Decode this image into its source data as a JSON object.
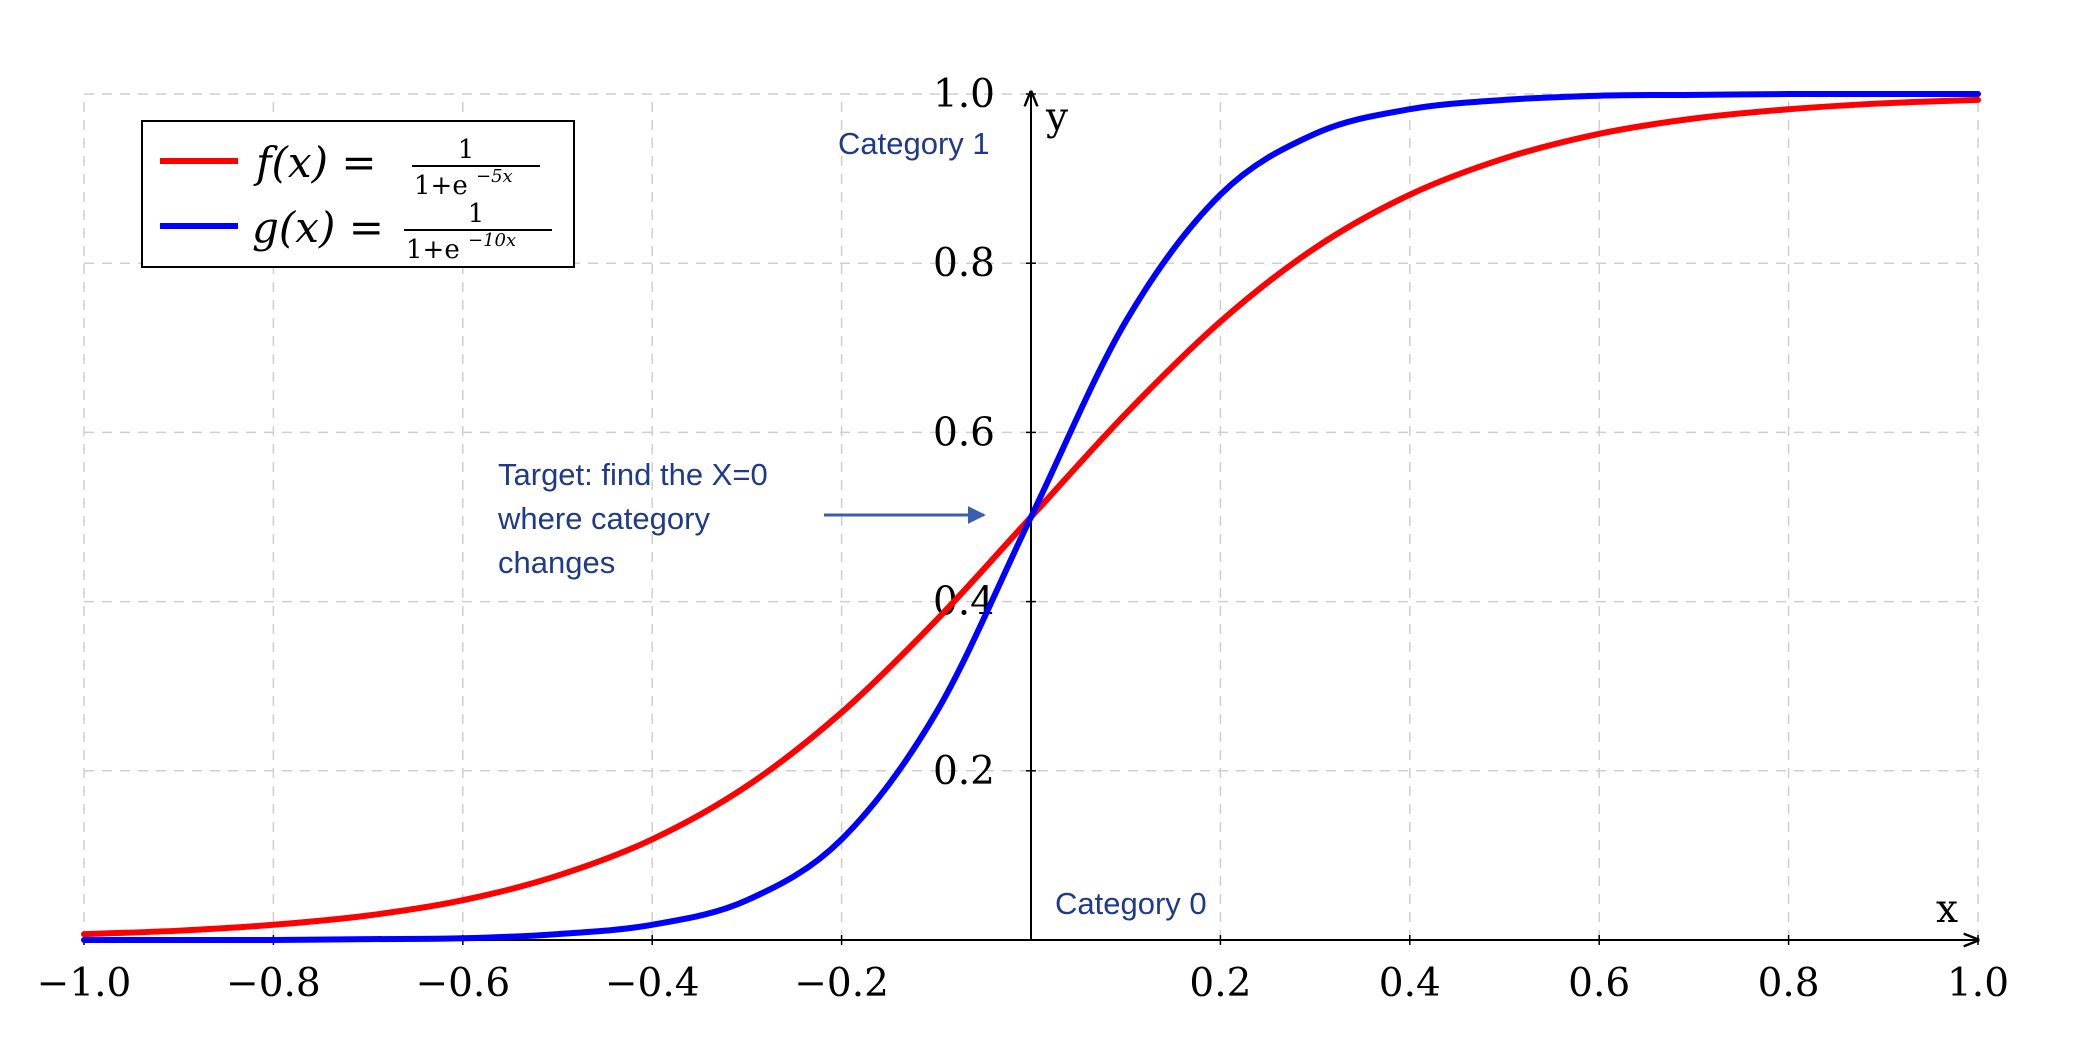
{
  "chart_data": {
    "type": "line",
    "xlabel": "x",
    "ylabel": "y",
    "xlim": [
      -1.0,
      1.0
    ],
    "ylim": [
      0.0,
      1.0
    ],
    "grid": true,
    "grid_style": "dashed",
    "legend_position": "top-left",
    "x_ticks": [
      -1.0,
      -0.8,
      -0.6,
      -0.4,
      -0.2,
      0.2,
      0.4,
      0.6,
      0.8,
      1.0
    ],
    "x_tick_labels": [
      "−1.0",
      "−0.8",
      "−0.6",
      "−0.4",
      "−0.2",
      "0.2",
      "0.4",
      "0.6",
      "0.8",
      "1.0"
    ],
    "y_ticks": [
      0.2,
      0.4,
      0.6,
      0.8,
      1.0
    ],
    "y_tick_labels": [
      "0.2",
      "0.4",
      "0.6",
      "0.8",
      "1.0"
    ],
    "series": [
      {
        "name": "f(x) = 1/(1+e^{-5x})",
        "color": "#ff0000",
        "x": [
          -1.0,
          -0.9,
          -0.8,
          -0.7,
          -0.6,
          -0.5,
          -0.4,
          -0.3,
          -0.2,
          -0.1,
          0.0,
          0.1,
          0.2,
          0.3,
          0.4,
          0.5,
          0.6,
          0.7,
          0.8,
          0.9,
          1.0
        ],
        "values": [
          0.007,
          0.011,
          0.018,
          0.029,
          0.047,
          0.076,
          0.119,
          0.182,
          0.269,
          0.378,
          0.5,
          0.622,
          0.731,
          0.818,
          0.881,
          0.924,
          0.953,
          0.971,
          0.982,
          0.989,
          0.993
        ]
      },
      {
        "name": "g(x) = 1/(1+e^{-10x})",
        "color": "#0000ff",
        "x": [
          -1.0,
          -0.9,
          -0.8,
          -0.7,
          -0.6,
          -0.5,
          -0.4,
          -0.3,
          -0.2,
          -0.1,
          0.0,
          0.1,
          0.2,
          0.3,
          0.4,
          0.5,
          0.6,
          0.7,
          0.8,
          0.9,
          1.0
        ],
        "values": [
          0.0,
          0.0,
          0.0,
          0.001,
          0.002,
          0.007,
          0.018,
          0.047,
          0.119,
          0.269,
          0.5,
          0.731,
          0.881,
          0.953,
          0.982,
          0.993,
          0.998,
          0.999,
          1.0,
          1.0,
          1.0
        ]
      }
    ],
    "legend": [
      {
        "lhs": "f(x) =",
        "num": "1",
        "den_base": "1+e",
        "den_exp": "−5x",
        "color": "#ff0000"
      },
      {
        "lhs": "g(x) =",
        "num": "1",
        "den_base": "1+e",
        "den_exp": "−10x",
        "color": "#0000ff"
      }
    ],
    "annotations": {
      "category_1": "Category 1",
      "category_0": "Category 0",
      "target_line_1": "Target: find the X=0",
      "target_line_2": "where category",
      "target_line_3": "changes"
    }
  },
  "colors": {
    "annotation": "#1f3a8a",
    "arrow": "#3a5fb0",
    "grid": "#cfcfcf",
    "axis": "#000000"
  }
}
